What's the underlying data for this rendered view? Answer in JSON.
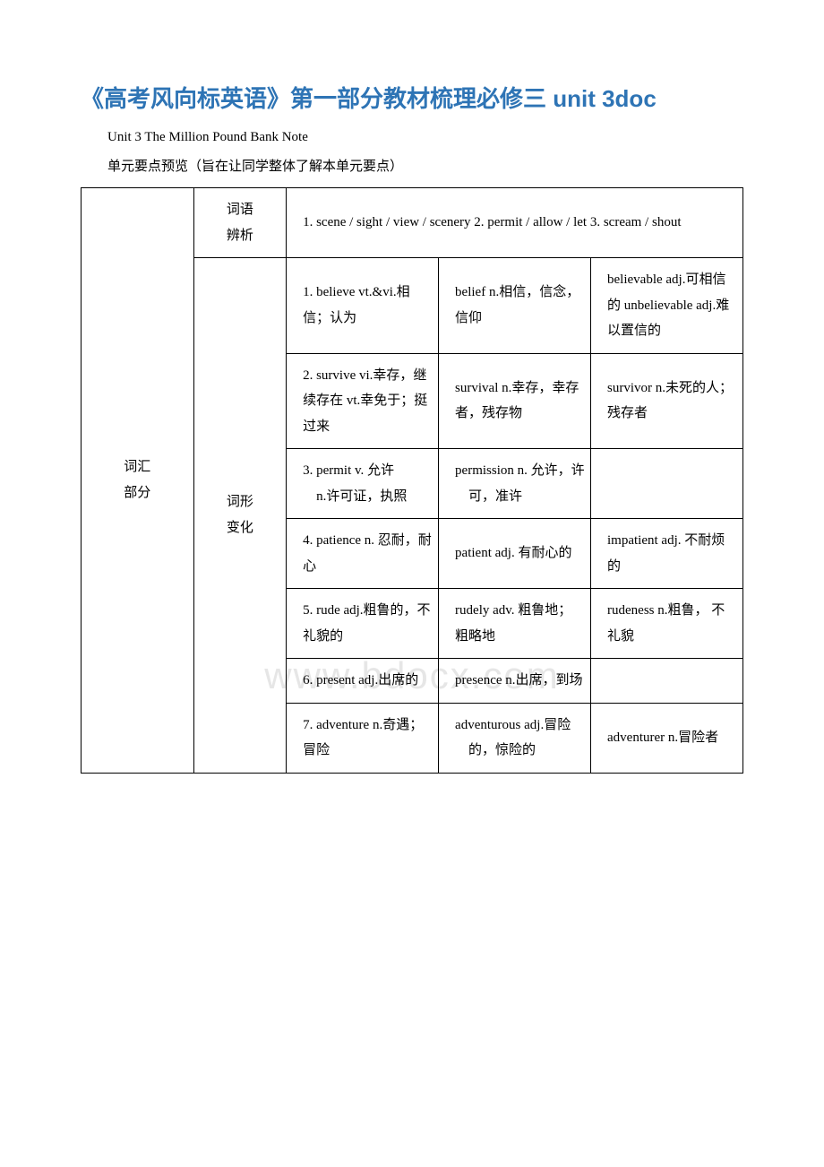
{
  "title": "《高考风向标英语》第一部分教材梳理必修三 unit 3doc",
  "subtitle": "Unit 3 The Million Pound Bank Note",
  "preview_note": "单元要点预览（旨在让同学整体了解本单元要点）",
  "watermark": "www.bdocx.com",
  "section": {
    "col1": "词汇\n部分",
    "row1": {
      "label": "词语\n辨析",
      "content": "1. scene / sight / view / scenery 2. permit / allow / let  3. scream / shout"
    },
    "forms_label": "词形\n变化",
    "rows": [
      {
        "c3": "1. believe vt.&vi.相信；认为",
        "c4": "belief n.相信，信念，信仰",
        "c5": "believable adj.可相信的 unbelievable adj.难以置信的"
      },
      {
        "c3": "2. survive vi.幸存，继续存在 vt.幸免于；挺过来",
        "c4": "survival n.幸存，幸存者，残存物",
        "c5": "survivor n.未死的人；残存者"
      },
      {
        "c3": "3. permit v. 允许\n    n.许可证，执照",
        "c4": "permission n. 允许，许\n    可，准许",
        "c5": ""
      },
      {
        "c3": "4. patience n. 忍耐，耐心",
        "c4": "patient adj. 有耐心的",
        "c5": "impatient adj. 不耐烦的"
      },
      {
        "c3": "5. rude adj.粗鲁的，不礼貌的",
        "c4": "rudely adv. 粗鲁地；粗略地",
        "c5": "rudeness n.粗鲁， 不礼貌"
      },
      {
        "c3": "6. present adj.出席的",
        "c4": "presence n.出席，到场",
        "c5": ""
      },
      {
        "c3": "7. adventure n.奇遇；冒险",
        "c4": "adventurous adj.冒险\n    的，惊险的",
        "c5": "adventurer n.冒险者"
      }
    ]
  }
}
